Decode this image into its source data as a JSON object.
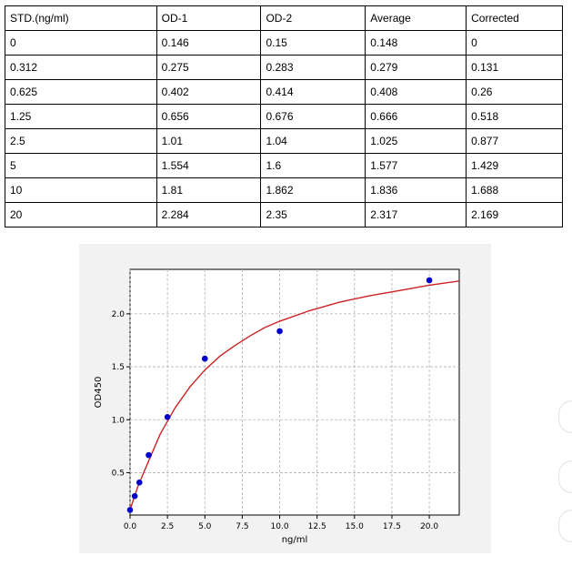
{
  "table": {
    "headers": [
      "STD.(ng/ml)",
      "OD-1",
      "OD-2",
      "Average",
      "Corrected"
    ],
    "rows": [
      [
        "0",
        "0.146",
        "0.15",
        "0.148",
        "0"
      ],
      [
        "0.312",
        "0.275",
        "0.283",
        "0.279",
        "0.131"
      ],
      [
        "0.625",
        "0.402",
        "0.414",
        "0.408",
        "0.26"
      ],
      [
        "1.25",
        "0.656",
        "0.676",
        "0.666",
        "0.518"
      ],
      [
        "2.5",
        "1.01",
        "1.04",
        "1.025",
        "0.877"
      ],
      [
        "5",
        "1.554",
        "1.6",
        "1.577",
        "1.429"
      ],
      [
        "10",
        "1.81",
        "1.862",
        "1.836",
        "1.688"
      ],
      [
        "20",
        "2.284",
        "2.35",
        "2.317",
        "2.169"
      ]
    ]
  },
  "chart_data": {
    "type": "scatter",
    "title": "",
    "xlabel": "ng/ml",
    "ylabel": "OD450",
    "xlim": [
      0,
      22
    ],
    "ylim": [
      0.1,
      2.42
    ],
    "xticks": [
      0.0,
      2.5,
      5.0,
      7.5,
      10.0,
      12.5,
      15.0,
      17.5,
      20.0
    ],
    "yticks": [
      0.5,
      1.0,
      1.5,
      2.0
    ],
    "grid": true,
    "series": [
      {
        "kind": "points",
        "x": [
          0,
          0.312,
          0.625,
          1.25,
          2.5,
          5,
          10,
          20
        ],
        "y": [
          0.148,
          0.279,
          0.408,
          0.666,
          1.025,
          1.577,
          1.836,
          2.317
        ],
        "color": "#0000cc"
      },
      {
        "kind": "fit-curve",
        "x": [
          0,
          0.5,
          1,
          2,
          3,
          4,
          5,
          6,
          7,
          8,
          9,
          10,
          12,
          14,
          16,
          18,
          20,
          22
        ],
        "y": [
          0.15,
          0.36,
          0.53,
          0.86,
          1.11,
          1.31,
          1.47,
          1.6,
          1.7,
          1.79,
          1.87,
          1.93,
          2.03,
          2.11,
          2.17,
          2.22,
          2.27,
          2.31
        ],
        "color": "#cc2222"
      }
    ],
    "colors": {
      "panel_background": "#f2f2f2",
      "plot_background": "#ffffff",
      "grid": "#b0b0b0"
    }
  }
}
